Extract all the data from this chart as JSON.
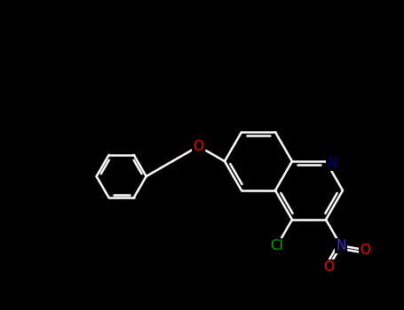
{
  "background_color": "#000000",
  "bond_color": "#ffffff",
  "atom_colors": {
    "N_quinoline": "#00008B",
    "N_nitro": "#3333cc",
    "O": "#ff0000",
    "Cl": "#00aa00"
  },
  "figsize": [
    4.55,
    3.5
  ],
  "dpi": 100,
  "bond_lw": 1.8
}
